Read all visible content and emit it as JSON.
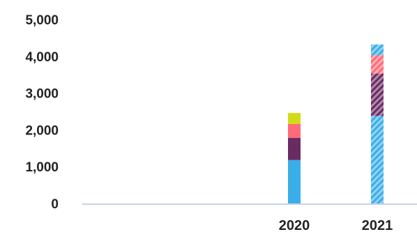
{
  "chart_data": {
    "type": "bar",
    "stacked": true,
    "categories": [
      "2020",
      "2021"
    ],
    "y_ticks": [
      "0",
      "1,000",
      "2,000",
      "3,000",
      "4,000",
      "5,000"
    ],
    "ylim": [
      0,
      5000
    ],
    "grid": false,
    "segments": {
      "2020": [
        {
          "value": 1180,
          "color": "#3aaee9",
          "pattern": "solid"
        },
        {
          "value": 600,
          "color": "#6a2a62",
          "pattern": "solid"
        },
        {
          "value": 380,
          "color": "#ff6b78",
          "pattern": "solid"
        },
        {
          "value": 300,
          "color": "#d2dc16",
          "pattern": "solid"
        }
      ],
      "2021": [
        {
          "value": 2380,
          "color": "#3aaee9",
          "pattern": "hatched"
        },
        {
          "value": 1150,
          "color": "#6a2a62",
          "pattern": "hatched"
        },
        {
          "value": 500,
          "color": "#ff6b78",
          "pattern": "hatched"
        },
        {
          "value": 290,
          "color": "#3aaee9",
          "pattern": "hatched"
        }
      ]
    },
    "axis_color": "#c7d3e6"
  }
}
